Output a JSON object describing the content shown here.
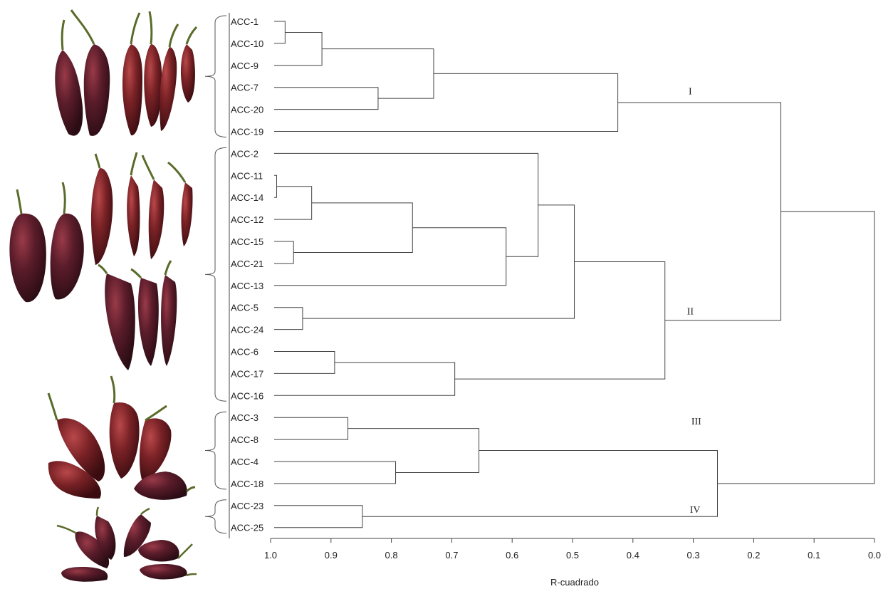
{
  "chart_data": {
    "type": "dendrogram",
    "xlabel": "R-cuadrado",
    "xlim": [
      1.0,
      0.0
    ],
    "ticks": [
      "1.0",
      "0.9",
      "0.8",
      "0.7",
      "0.6",
      "0.5",
      "0.4",
      "0.3",
      "0.2",
      "0.1",
      "0.0"
    ],
    "leaves": [
      "ACC-1",
      "ACC-10",
      "ACC-9",
      "ACC-7",
      "ACC-20",
      "ACC-19",
      "ACC-2",
      "ACC-11",
      "ACC-14",
      "ACC-12",
      "ACC-15",
      "ACC-21",
      "ACC-13",
      "ACC-5",
      "ACC-24",
      "ACC-6",
      "ACC-17",
      "ACC-16",
      "ACC-3",
      "ACC-8",
      "ACC-4",
      "ACC-18",
      "ACC-23",
      "ACC-25"
    ],
    "merges": [
      {
        "id": "m1",
        "a": "ACC-1",
        "b": "ACC-10",
        "r2": 0.976
      },
      {
        "id": "m2",
        "a": "m1",
        "b": "ACC-9",
        "r2": 0.915
      },
      {
        "id": "m3",
        "a": "ACC-7",
        "b": "ACC-20",
        "r2": 0.822
      },
      {
        "id": "m4",
        "a": "m2",
        "b": "m3",
        "r2": 0.73
      },
      {
        "id": "m5",
        "a": "m4",
        "b": "ACC-19",
        "r2": 0.425
      },
      {
        "id": "m6",
        "a": "ACC-11",
        "b": "ACC-14",
        "r2": 0.99
      },
      {
        "id": "m7",
        "a": "m6",
        "b": "ACC-12",
        "r2": 0.932
      },
      {
        "id": "m8",
        "a": "ACC-15",
        "b": "ACC-21",
        "r2": 0.962
      },
      {
        "id": "m9",
        "a": "m7",
        "b": "m8",
        "r2": 0.765
      },
      {
        "id": "m10",
        "a": "m9",
        "b": "ACC-13",
        "r2": 0.61
      },
      {
        "id": "m11",
        "a": "ACC-2",
        "b": "m10",
        "r2": 0.557
      },
      {
        "id": "m12",
        "a": "ACC-5",
        "b": "ACC-24",
        "r2": 0.947
      },
      {
        "id": "m13",
        "a": "m11",
        "b": "m12",
        "r2": 0.497
      },
      {
        "id": "m14",
        "a": "ACC-6",
        "b": "ACC-17",
        "r2": 0.894
      },
      {
        "id": "m15",
        "a": "m14",
        "b": "ACC-16",
        "r2": 0.695
      },
      {
        "id": "m16",
        "a": "m13",
        "b": "m15",
        "r2": 0.347
      },
      {
        "id": "m17",
        "a": "m5",
        "b": "m16",
        "r2": 0.155
      },
      {
        "id": "m18",
        "a": "ACC-3",
        "b": "ACC-8",
        "r2": 0.872
      },
      {
        "id": "m19",
        "a": "ACC-4",
        "b": "ACC-18",
        "r2": 0.793
      },
      {
        "id": "m20",
        "a": "m18",
        "b": "m19",
        "r2": 0.655
      },
      {
        "id": "m21",
        "a": "ACC-23",
        "b": "ACC-25",
        "r2": 0.848
      },
      {
        "id": "m22",
        "a": "m20",
        "b": "m21",
        "r2": 0.26
      },
      {
        "id": "m23",
        "a": "m17",
        "b": "m22",
        "r2": 0.0
      }
    ],
    "clusters": [
      {
        "label": "I",
        "r2": 0.305,
        "after_leaf": "ACC-7"
      },
      {
        "label": "II",
        "r2": 0.305,
        "after_leaf": "ACC-5"
      },
      {
        "label": "III",
        "r2": 0.295,
        "after_leaf": "ACC-3"
      },
      {
        "label": "IV",
        "r2": 0.297,
        "after_leaf": "ACC-23"
      }
    ],
    "groups": [
      {
        "name": "group-1",
        "first": "ACC-1",
        "last": "ACC-19",
        "pepper_color": "#4a1f2c"
      },
      {
        "name": "group-2",
        "first": "ACC-2",
        "last": "ACC-16",
        "pepper_color": "#5a1c24"
      },
      {
        "name": "group-3",
        "first": "ACC-3",
        "last": "ACC-18",
        "pepper_color": "#6b1b22"
      },
      {
        "name": "group-4",
        "first": "ACC-23",
        "last": "ACC-25",
        "pepper_color": "#4e1a26"
      }
    ],
    "colors": {
      "line": "#444444",
      "text": "#222222",
      "stem": "#5a6b2a"
    }
  }
}
